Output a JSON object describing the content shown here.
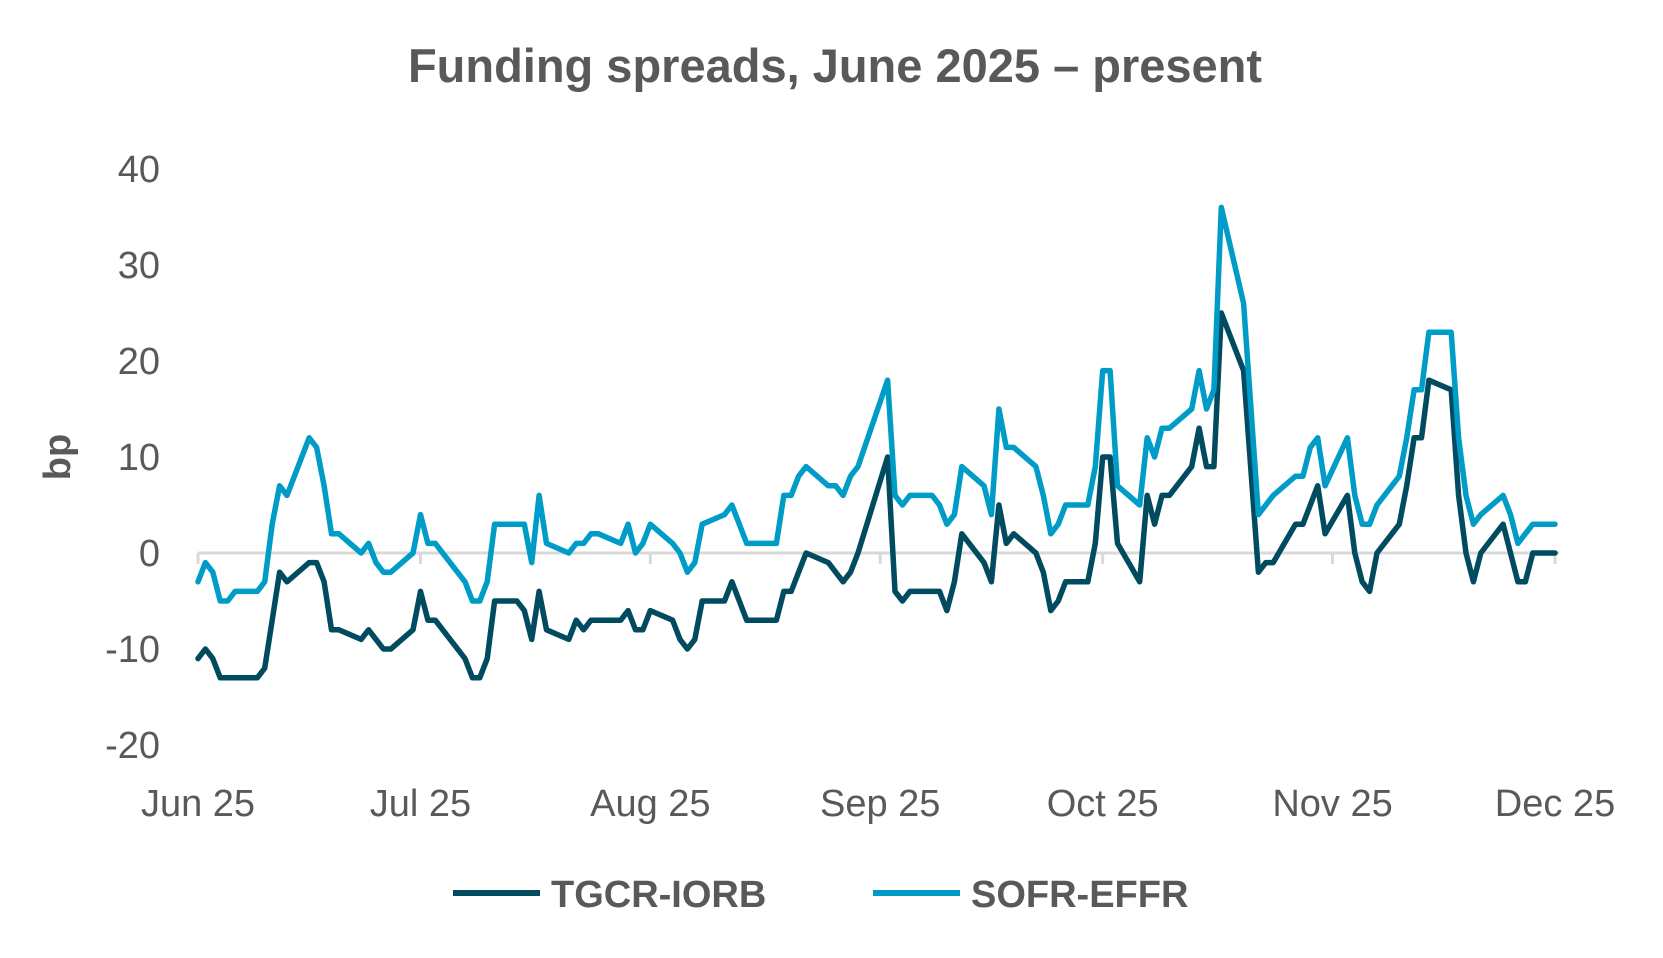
{
  "chart_data": {
    "type": "line",
    "title": "Funding spreads, June 2025 – present",
    "xlabel": "",
    "ylabel": "bp",
    "ylim": [
      -20,
      40
    ],
    "yticks": [
      40,
      30,
      20,
      10,
      0,
      -10,
      -20
    ],
    "xlim": [
      "2025-06-01",
      "2025-12-01"
    ],
    "xticks": [
      {
        "date": "2025-06-01",
        "label": "Jun 25"
      },
      {
        "date": "2025-07-01",
        "label": "Jul 25"
      },
      {
        "date": "2025-08-01",
        "label": "Aug 25"
      },
      {
        "date": "2025-09-01",
        "label": "Sep 25"
      },
      {
        "date": "2025-10-01",
        "label": "Oct 25"
      },
      {
        "date": "2025-11-01",
        "label": "Nov 25"
      },
      {
        "date": "2025-12-01",
        "label": "Dec 25"
      }
    ],
    "grid": false,
    "legend": "bottom",
    "x": [
      "2025-06-01",
      "2025-06-02",
      "2025-06-03",
      "2025-06-04",
      "2025-06-05",
      "2025-06-06",
      "2025-06-09",
      "2025-06-10",
      "2025-06-11",
      "2025-06-12",
      "2025-06-13",
      "2025-06-16",
      "2025-06-17",
      "2025-06-18",
      "2025-06-19",
      "2025-06-20",
      "2025-06-23",
      "2025-06-24",
      "2025-06-25",
      "2025-06-26",
      "2025-06-27",
      "2025-06-30",
      "2025-07-01",
      "2025-07-02",
      "2025-07-03",
      "2025-07-07",
      "2025-07-08",
      "2025-07-09",
      "2025-07-10",
      "2025-07-11",
      "2025-07-14",
      "2025-07-15",
      "2025-07-16",
      "2025-07-17",
      "2025-07-18",
      "2025-07-21",
      "2025-07-22",
      "2025-07-23",
      "2025-07-24",
      "2025-07-25",
      "2025-07-28",
      "2025-07-29",
      "2025-07-30",
      "2025-07-31",
      "2025-08-01",
      "2025-08-04",
      "2025-08-05",
      "2025-08-06",
      "2025-08-07",
      "2025-08-08",
      "2025-08-11",
      "2025-08-12",
      "2025-08-13",
      "2025-08-14",
      "2025-08-15",
      "2025-08-18",
      "2025-08-19",
      "2025-08-20",
      "2025-08-21",
      "2025-08-22",
      "2025-08-25",
      "2025-08-26",
      "2025-08-27",
      "2025-08-28",
      "2025-08-29",
      "2025-09-02",
      "2025-09-03",
      "2025-09-04",
      "2025-09-05",
      "2025-09-08",
      "2025-09-09",
      "2025-09-10",
      "2025-09-11",
      "2025-09-12",
      "2025-09-15",
      "2025-09-16",
      "2025-09-17",
      "2025-09-18",
      "2025-09-19",
      "2025-09-22",
      "2025-09-23",
      "2025-09-24",
      "2025-09-25",
      "2025-09-26",
      "2025-09-29",
      "2025-09-30",
      "2025-10-01",
      "2025-10-02",
      "2025-10-03",
      "2025-10-06",
      "2025-10-07",
      "2025-10-08",
      "2025-10-09",
      "2025-10-10",
      "2025-10-13",
      "2025-10-14",
      "2025-10-15",
      "2025-10-16",
      "2025-10-17",
      "2025-10-20",
      "2025-10-22",
      "2025-10-23",
      "2025-10-24",
      "2025-10-27",
      "2025-10-28",
      "2025-10-29",
      "2025-10-30",
      "2025-10-31",
      "2025-11-03",
      "2025-11-04",
      "2025-11-05",
      "2025-11-06",
      "2025-11-07",
      "2025-11-10",
      "2025-11-11",
      "2025-11-12",
      "2025-11-13",
      "2025-11-14",
      "2025-11-17",
      "2025-11-18",
      "2025-11-19",
      "2025-11-20",
      "2025-11-21",
      "2025-11-24",
      "2025-11-25",
      "2025-11-26",
      "2025-11-27",
      "2025-11-28",
      "2025-12-01"
    ],
    "series": [
      {
        "name": "TGCR-IORB",
        "color": "#004b5f",
        "values": [
          -11,
          -10,
          -11,
          -13,
          -13,
          -13,
          -13,
          -12,
          -7,
          -2,
          -3,
          -1,
          -1,
          -3,
          -8,
          -8,
          -9,
          -8,
          -9,
          -10,
          -10,
          -8,
          -4,
          -7,
          -7,
          -11,
          -13,
          -13,
          -11,
          -5,
          -5,
          -6,
          -9,
          -4,
          -8,
          -9,
          -7,
          -8,
          -7,
          -7,
          -7,
          -6,
          -8,
          -8,
          -6,
          -7,
          -9,
          -10,
          -9,
          -5,
          -5,
          -3,
          -5,
          -7,
          -7,
          -7,
          -4,
          -4,
          -2,
          0,
          -1,
          -2,
          -3,
          -2,
          0,
          10,
          -4,
          -5,
          -4,
          -4,
          -4,
          -6,
          -3,
          2,
          -1,
          -3,
          5,
          1,
          2,
          0,
          -2,
          -6,
          -5,
          -3,
          -3,
          1,
          10,
          10,
          1,
          -3,
          6,
          3,
          6,
          6,
          9,
          13,
          9,
          9,
          25,
          19,
          -2,
          -1,
          -1,
          3,
          3,
          5,
          7,
          2,
          6,
          0,
          -3,
          -4,
          0,
          3,
          7,
          12,
          12,
          18,
          17,
          6,
          0,
          -3,
          0,
          3,
          0,
          -3,
          -3,
          0,
          0
        ]
      },
      {
        "name": "SOFR-EFFR",
        "color": "#009cc8",
        "values": [
          -3,
          -1,
          -2,
          -5,
          -5,
          -4,
          -4,
          -3,
          3,
          7,
          6,
          12,
          11,
          7,
          2,
          2,
          0,
          1,
          -1,
          -2,
          -2,
          0,
          4,
          1,
          1,
          -3,
          -5,
          -5,
          -3,
          3,
          3,
          3,
          -1,
          6,
          1,
          0,
          1,
          1,
          2,
          2,
          1,
          3,
          0,
          1,
          3,
          1,
          0,
          -2,
          -1,
          3,
          4,
          5,
          3,
          1,
          1,
          1,
          6,
          6,
          8,
          9,
          7,
          7,
          6,
          8,
          9,
          18,
          6,
          5,
          6,
          6,
          5,
          3,
          4,
          9,
          7,
          4,
          15,
          11,
          11,
          9,
          6,
          2,
          3,
          5,
          5,
          9,
          19,
          19,
          7,
          5,
          12,
          10,
          13,
          13,
          15,
          19,
          15,
          17,
          36,
          26,
          4,
          5,
          6,
          8,
          8,
          11,
          12,
          7,
          12,
          6,
          3,
          3,
          5,
          8,
          12,
          17,
          17,
          23,
          23,
          12,
          6,
          3,
          4,
          6,
          4,
          1,
          2,
          3,
          3
        ]
      }
    ]
  }
}
